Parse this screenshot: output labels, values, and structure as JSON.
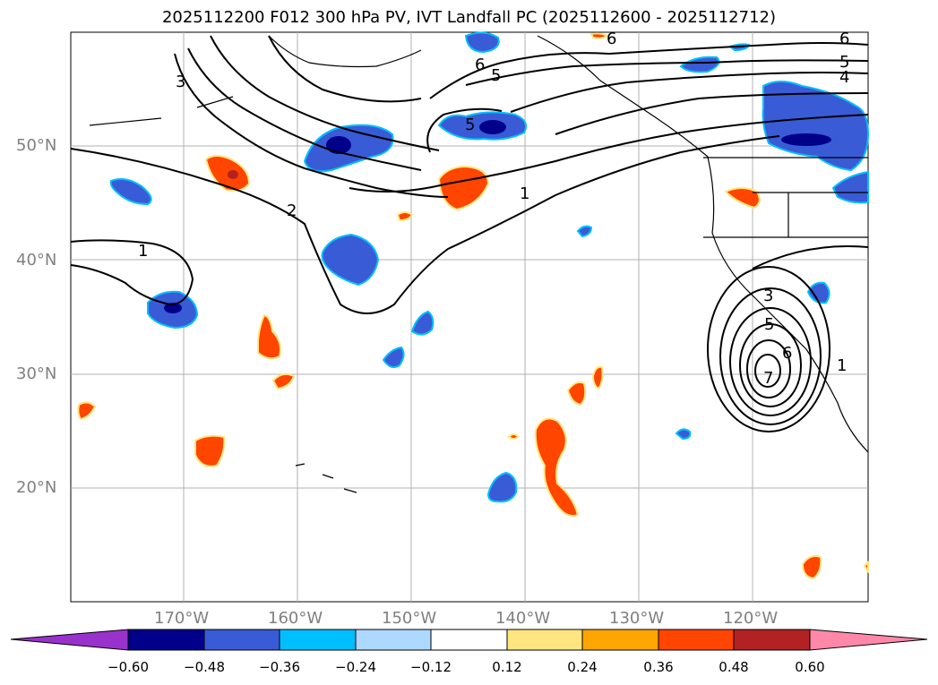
{
  "title": "2025112200 F012 300 hPa PV, IVT Landfall PC (2025112600 - 2025112712)",
  "map": {
    "lat_labels": [
      "50°N",
      "40°N",
      "30°N",
      "20°N"
    ],
    "lon_labels": [
      "170°W",
      "160°W",
      "150°W",
      "140°W",
      "130°W",
      "120°W"
    ],
    "contour_labels": [
      "3",
      "2",
      "1",
      "6",
      "5",
      "5",
      "1",
      "6",
      "6",
      "5",
      "4",
      "3",
      "5",
      "7",
      "6",
      "1"
    ]
  },
  "colorbar": {
    "ticks": [
      "−0.60",
      "−0.48",
      "−0.36",
      "−0.24",
      "−0.12",
      "0.12",
      "0.24",
      "0.36",
      "0.48",
      "0.60"
    ],
    "colors": [
      "#9932cc",
      "#00008b",
      "#3a5bd6",
      "#00bfff",
      "#add8ff",
      "#ffffff",
      "#ffe680",
      "#ffa500",
      "#ff4500",
      "#b22222",
      "#ff88aa"
    ]
  }
}
